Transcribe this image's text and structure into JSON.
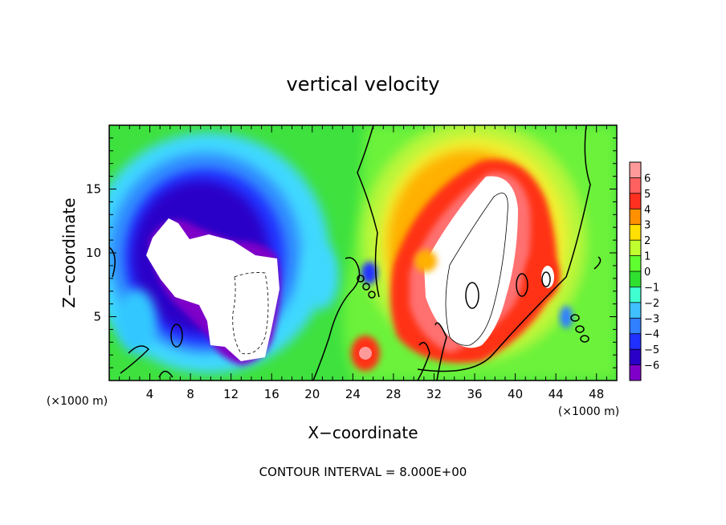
{
  "chart_data": {
    "type": "heatmap",
    "title": "vertical velocity",
    "xlabel": "X−coordinate",
    "ylabel": "Z−coordinate",
    "x_unit_left": "(×1000 m)",
    "x_unit_right": "(×1000 m)",
    "footer": "CONTOUR INTERVAL = 8.000E+00",
    "xlim": [
      0,
      50
    ],
    "ylim": [
      0,
      20
    ],
    "x_ticks": [
      4,
      8,
      12,
      16,
      20,
      24,
      28,
      32,
      36,
      40,
      44,
      48
    ],
    "x_tick_labels": [
      "4",
      "8",
      "12",
      "16",
      "20",
      "24",
      "28",
      "32",
      "36",
      "40",
      "44",
      "48"
    ],
    "y_ticks": [
      5,
      10,
      15
    ],
    "y_tick_labels": [
      "5",
      "10",
      "15"
    ],
    "colorbar": {
      "levels": [
        -6,
        -5,
        -4,
        -3,
        -2,
        -1,
        0,
        1,
        2,
        3,
        4,
        5,
        6
      ],
      "labels": [
        "6",
        "5",
        "4",
        "3",
        "2",
        "1",
        "0",
        "−1",
        "−2",
        "−3",
        "−4",
        "−5",
        "−6"
      ],
      "colors": [
        "#7f00c8",
        "#2a00c8",
        "#2030ff",
        "#3080ff",
        "#40c0ff",
        "#40ffd0",
        "#30e030",
        "#60ff30",
        "#c0ff30",
        "#ffe000",
        "#ff9000",
        "#ff3020",
        "#ff6060",
        "#ff9a9a"
      ]
    },
    "field_features": [
      {
        "kind": "downdraft",
        "x": 11,
        "z": 9,
        "value": -7
      },
      {
        "kind": "updraft",
        "x": 36,
        "z": 9,
        "value": 7
      },
      {
        "kind": "updraft",
        "x": 25,
        "z": 2,
        "value": 4
      },
      {
        "kind": "updraft",
        "x": 42,
        "z": 8,
        "value": 4
      }
    ]
  }
}
